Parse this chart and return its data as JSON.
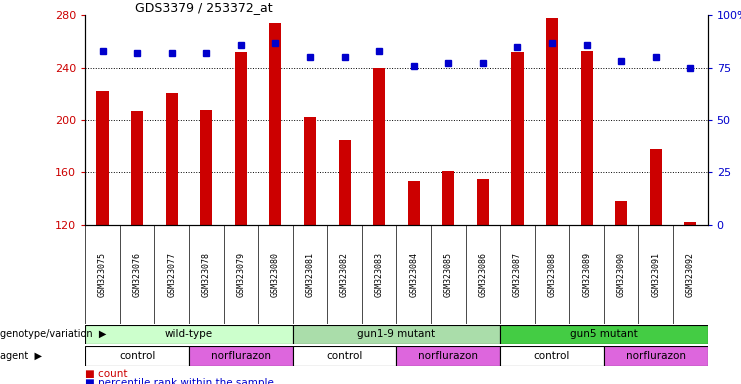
{
  "title": "GDS3379 / 253372_at",
  "samples": [
    "GSM323075",
    "GSM323076",
    "GSM323077",
    "GSM323078",
    "GSM323079",
    "GSM323080",
    "GSM323081",
    "GSM323082",
    "GSM323083",
    "GSM323084",
    "GSM323085",
    "GSM323086",
    "GSM323087",
    "GSM323088",
    "GSM323089",
    "GSM323090",
    "GSM323091",
    "GSM323092"
  ],
  "counts": [
    222,
    207,
    221,
    208,
    252,
    274,
    202,
    185,
    240,
    153,
    161,
    155,
    252,
    278,
    253,
    138,
    178,
    122
  ],
  "percentile_ranks": [
    83,
    82,
    82,
    82,
    86,
    87,
    80,
    80,
    83,
    76,
    77,
    77,
    85,
    87,
    86,
    78,
    80,
    75
  ],
  "ylim_left": [
    120,
    280
  ],
  "ylim_right": [
    0,
    100
  ],
  "yticks_left": [
    120,
    160,
    200,
    240,
    280
  ],
  "yticks_right": [
    0,
    25,
    50,
    75,
    100
  ],
  "bar_color": "#cc0000",
  "dot_color": "#0000cc",
  "genotype_groups": [
    {
      "label": "wild-type",
      "start": 0,
      "end": 5,
      "color": "#ccffcc"
    },
    {
      "label": "gun1-9 mutant",
      "start": 6,
      "end": 11,
      "color": "#aaddaa"
    },
    {
      "label": "gun5 mutant",
      "start": 12,
      "end": 17,
      "color": "#44cc44"
    }
  ],
  "agent_groups": [
    {
      "label": "control",
      "start": 0,
      "end": 2,
      "color": "#ee88ee"
    },
    {
      "label": "norflurazon",
      "start": 3,
      "end": 5,
      "color": "#cc44cc"
    },
    {
      "label": "control",
      "start": 6,
      "end": 8,
      "color": "#ee88ee"
    },
    {
      "label": "norflurazon",
      "start": 9,
      "end": 11,
      "color": "#cc44cc"
    },
    {
      "label": "control",
      "start": 12,
      "end": 14,
      "color": "#ee88ee"
    },
    {
      "label": "norflurazon",
      "start": 15,
      "end": 17,
      "color": "#cc44cc"
    }
  ],
  "agent_control_color": "#ee88ee",
  "agent_norf_color": "#dd55dd",
  "legend_count_color": "#cc0000",
  "legend_pct_color": "#0000cc",
  "tick_bg_color": "#cccccc",
  "xlabel_color": "#cc0000",
  "right_axis_color": "#0000cc"
}
